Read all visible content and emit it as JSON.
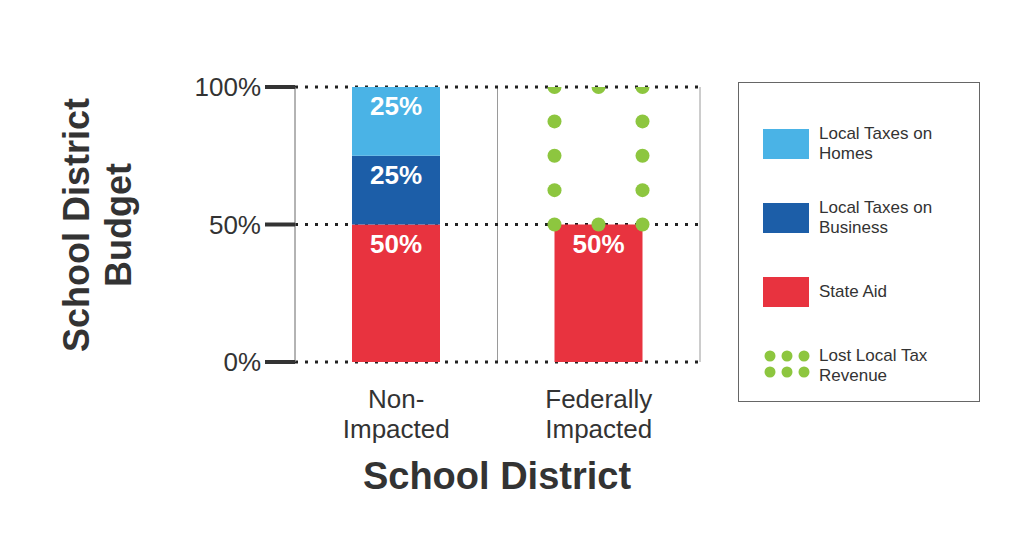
{
  "chart_data": {
    "type": "bar",
    "stacked": true,
    "categories": [
      "Non-Impacted",
      "Federally Impacted"
    ],
    "x_label": "School District",
    "y_label": "School District Budget",
    "ylim": [
      0,
      100
    ],
    "yticks": [
      {
        "value": 0,
        "label": "0%"
      },
      {
        "value": 50,
        "label": "50%"
      },
      {
        "value": 100,
        "label": "100%"
      }
    ],
    "grid": true,
    "legend": "right",
    "data_labels": true,
    "series": [
      {
        "name": "Local Taxes on Homes",
        "color": "#4ab3e6",
        "values": [
          25,
          null
        ],
        "value_labels": [
          "25%",
          null
        ]
      },
      {
        "name": "Local Taxes on Business",
        "color": "#1c5ea8",
        "values": [
          25,
          null
        ],
        "value_labels": [
          "25%",
          null
        ]
      },
      {
        "name": "State Aid",
        "color": "#e8333f",
        "values": [
          50,
          50
        ],
        "value_labels": [
          "50%",
          "50%"
        ]
      },
      {
        "name": "Lost Local Tax Revenue",
        "color": "#8dc63f",
        "line_style": "dotted",
        "values": [
          null,
          50
        ]
      }
    ]
  }
}
